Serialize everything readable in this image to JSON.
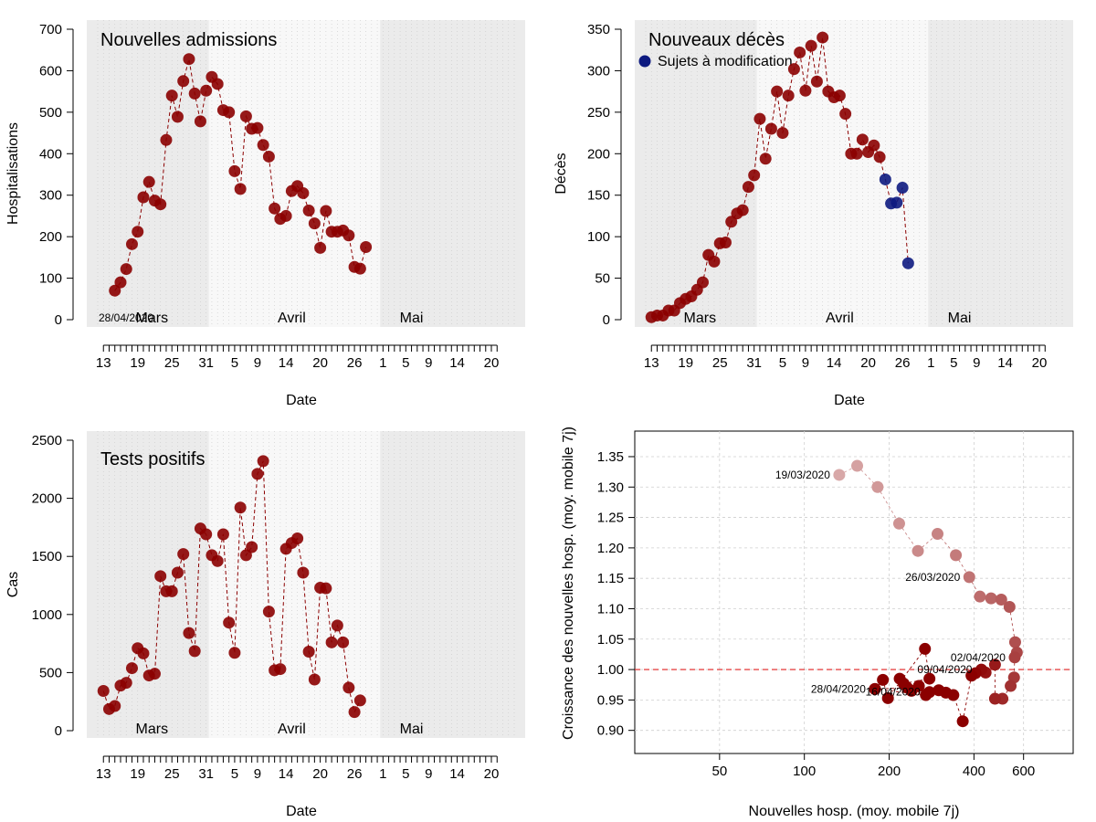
{
  "chart_data": [
    {
      "type": "line",
      "id": "admissions",
      "title": "Nouvelles admissions",
      "xlabel": "Date",
      "ylabel": "Hospitalisations",
      "ylim": [
        0,
        700
      ],
      "yticks": [
        0,
        100,
        200,
        300,
        400,
        500,
        600,
        700
      ],
      "months": [
        "Mars",
        "Avril",
        "Mai"
      ],
      "xtick_labels": [
        "13",
        "19",
        "25",
        "31",
        "5",
        "9",
        "14",
        "20",
        "26",
        "1",
        "5",
        "9",
        "14",
        "20"
      ],
      "annotation": "28/04/2020",
      "x_start": "2020-03-15",
      "values": [
        70,
        90,
        122,
        182,
        212,
        295,
        332,
        287,
        278,
        433,
        540,
        489,
        575,
        628,
        545,
        478,
        552,
        585,
        568,
        505,
        500,
        358,
        315,
        490,
        460,
        462,
        421,
        393,
        268,
        243,
        250,
        310,
        322,
        305,
        263,
        232,
        173,
        262,
        212,
        212,
        215,
        203,
        127,
        123,
        175
      ],
      "series_color": "#8b0000"
    },
    {
      "type": "line",
      "id": "deaths",
      "title": "Nouveaux décès",
      "xlabel": "Date",
      "ylabel": "Décès",
      "ylim": [
        0,
        350
      ],
      "yticks": [
        0,
        50,
        100,
        150,
        200,
        250,
        300,
        350
      ],
      "months": [
        "Mars",
        "Avril",
        "Mai"
      ],
      "xtick_labels": [
        "13",
        "19",
        "25",
        "31",
        "5",
        "9",
        "14",
        "20",
        "26",
        "1",
        "5",
        "9",
        "14",
        "20"
      ],
      "legend": "Sujets à modification",
      "x_start": "2020-03-13",
      "values": [
        3,
        5,
        5,
        11,
        11,
        20,
        25,
        28,
        36,
        45,
        78,
        70,
        92,
        93,
        118,
        128,
        132,
        160,
        174,
        242,
        194,
        230,
        275,
        225,
        270,
        302,
        322,
        276,
        330,
        287,
        340,
        275,
        268,
        270,
        248,
        200,
        200,
        217,
        202,
        210,
        196,
        169,
        140,
        141,
        159,
        68
      ],
      "modified_from_index": 41,
      "series_color": "#8b0000",
      "modified_color": "#0d1a80"
    },
    {
      "type": "line",
      "id": "tests",
      "title": "Tests positifs",
      "xlabel": "Date",
      "ylabel": "Cas",
      "ylim": [
        0,
        2500
      ],
      "yticks": [
        0,
        500,
        1000,
        1500,
        2000,
        2500
      ],
      "months": [
        "Mars",
        "Avril",
        "Mai"
      ],
      "xtick_labels": [
        "13",
        "19",
        "25",
        "31",
        "5",
        "9",
        "14",
        "20",
        "26",
        "1",
        "5",
        "9",
        "14",
        "20"
      ],
      "x_start": "2020-03-13",
      "values": [
        342,
        186,
        212,
        388,
        412,
        538,
        710,
        665,
        475,
        490,
        1330,
        1200,
        1200,
        1360,
        1520,
        840,
        685,
        1740,
        1690,
        1510,
        1460,
        1690,
        930,
        670,
        1920,
        1510,
        1580,
        2210,
        2320,
        1025,
        520,
        530,
        1565,
        1615,
        1655,
        1360,
        680,
        440,
        1230,
        1225,
        760,
        905,
        760,
        370,
        160,
        260
      ],
      "series_color": "#8b0000"
    },
    {
      "type": "scatter",
      "id": "growth",
      "xlabel": "Nouvelles hosp. (moy. mobile 7j)",
      "ylabel": "Croissance des nouvelles hosp. (moy. mobile 7j)",
      "xscale": "log",
      "xlim": [
        25,
        900
      ],
      "xticks": [
        50,
        100,
        200,
        400,
        600
      ],
      "ylim": [
        0.88,
        1.38
      ],
      "yticks": [
        "0.90",
        "0.95",
        "1.00",
        "1.05",
        "1.10",
        "1.15",
        "1.20",
        "1.25",
        "1.30",
        "1.35"
      ],
      "reference_line": 1.0,
      "labels": [
        {
          "text": "19/03/2020",
          "index": 0
        },
        {
          "text": "26/03/2020",
          "index": 7
        },
        {
          "text": "02/04/2020",
          "index": 14
        },
        {
          "text": "09/04/2020",
          "index": 21
        },
        {
          "text": "16/04/2020",
          "index": 28
        },
        {
          "text": "28/04/2020",
          "index": 40
        }
      ],
      "points": [
        {
          "x": 133,
          "y": 1.32
        },
        {
          "x": 154,
          "y": 1.335
        },
        {
          "x": 182,
          "y": 1.3
        },
        {
          "x": 217,
          "y": 1.24
        },
        {
          "x": 253,
          "y": 1.195
        },
        {
          "x": 297,
          "y": 1.223
        },
        {
          "x": 345,
          "y": 1.188
        },
        {
          "x": 385,
          "y": 1.152
        },
        {
          "x": 420,
          "y": 1.12
        },
        {
          "x": 460,
          "y": 1.117
        },
        {
          "x": 500,
          "y": 1.115
        },
        {
          "x": 535,
          "y": 1.103
        },
        {
          "x": 560,
          "y": 1.045
        },
        {
          "x": 568,
          "y": 1.028
        },
        {
          "x": 558,
          "y": 1.02
        },
        {
          "x": 555,
          "y": 0.987
        },
        {
          "x": 540,
          "y": 0.973
        },
        {
          "x": 505,
          "y": 0.952
        },
        {
          "x": 475,
          "y": 0.952
        },
        {
          "x": 475,
          "y": 1.008
        },
        {
          "x": 440,
          "y": 0.995
        },
        {
          "x": 425,
          "y": 1.0
        },
        {
          "x": 405,
          "y": 0.994
        },
        {
          "x": 392,
          "y": 0.99
        },
        {
          "x": 365,
          "y": 0.915
        },
        {
          "x": 338,
          "y": 0.958
        },
        {
          "x": 318,
          "y": 0.962
        },
        {
          "x": 300,
          "y": 0.966
        },
        {
          "x": 278,
          "y": 0.963
        },
        {
          "x": 255,
          "y": 0.973
        },
        {
          "x": 240,
          "y": 0.965
        },
        {
          "x": 218,
          "y": 0.985
        },
        {
          "x": 225,
          "y": 0.977
        },
        {
          "x": 278,
          "y": 0.985
        },
        {
          "x": 268,
          "y": 1.034
        },
        {
          "x": 198,
          "y": 0.953
        },
        {
          "x": 190,
          "y": 0.983
        },
        {
          "x": 178,
          "y": 0.968
        },
        {
          "x": 232,
          "y": 0.97
        },
        {
          "x": 270,
          "y": 0.958
        },
        {
          "x": 178,
          "y": 0.968
        }
      ],
      "color_start": "#d8a8a8",
      "color_end": "#8b0000"
    }
  ]
}
